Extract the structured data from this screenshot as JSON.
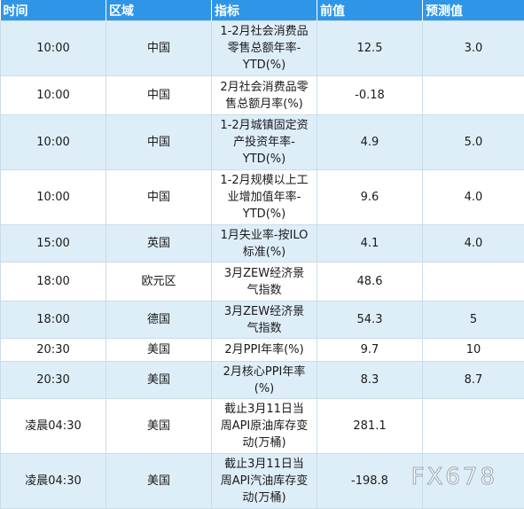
{
  "headers": [
    "时间",
    "区域",
    "指标",
    "前值",
    "预测值"
  ],
  "rows": [
    {
      "time": "10:00",
      "region": "中国",
      "indicator": "1-2月社会消费品零售总额年率-YTD(%)",
      "prev": "12.5",
      "forecast": "3.0"
    },
    {
      "time": "10:00",
      "region": "中国",
      "indicator": "2月社会消费品零售总额月率(%)",
      "prev": "-0.18",
      "forecast": ""
    },
    {
      "time": "10:00",
      "region": "中国",
      "indicator": "1-2月城镇固定资产投资年率-YTD(%)",
      "prev": "4.9",
      "forecast": "5.0"
    },
    {
      "time": "10:00",
      "region": "中国",
      "indicator": "1-2月规模以上工业增加值年率-YTD(%)",
      "prev": "9.6",
      "forecast": "4.0"
    },
    {
      "time": "15:00",
      "region": "英国",
      "indicator": "1月失业率-按ILO标准(%)",
      "prev": "4.1",
      "forecast": "4.0"
    },
    {
      "time": "18:00",
      "region": "欧元区",
      "indicator": "3月ZEW经济景气指数",
      "prev": "48.6",
      "forecast": ""
    },
    {
      "time": "18:00",
      "region": "德国",
      "indicator": "3月ZEW经济景气指数",
      "prev": "54.3",
      "forecast": "5"
    },
    {
      "time": "20:30",
      "region": "美国",
      "indicator": "2月PPI年率(%)",
      "prev": "9.7",
      "forecast": "10"
    },
    {
      "time": "20:30",
      "region": "美国",
      "indicator": "2月核心PPI年率(%)",
      "prev": "8.3",
      "forecast": "8.7"
    },
    {
      "time": "凌晨04:30",
      "region": "美国",
      "indicator": "截止3月11日当周API原油库存变动(万桶)",
      "prev": "281.1",
      "forecast": ""
    },
    {
      "time": "凌晨04:30",
      "region": "美国",
      "indicator": "截止3月11日当周API汽油库存变动(万桶)",
      "prev": "-198.8",
      "forecast": ""
    }
  ],
  "watermark": "FX678"
}
